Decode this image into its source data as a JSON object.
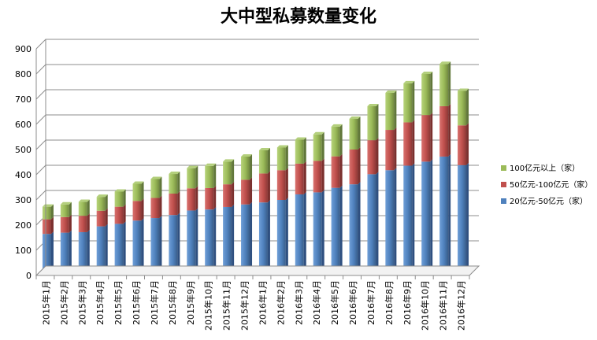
{
  "chart_data": {
    "type": "bar",
    "stacked": true,
    "title": "大中型私募数量变化",
    "xlabel": "",
    "ylabel": "",
    "ylim": [
      0,
      900
    ],
    "yticks": [
      0,
      100,
      200,
      300,
      400,
      500,
      600,
      700,
      800,
      900
    ],
    "grid": true,
    "legend_position": "right",
    "categories": [
      "2015年1月",
      "2015年2月",
      "2015年3月",
      "2015年4月",
      "2015年5月",
      "2015年6月",
      "2015年7月",
      "2015年8月",
      "2015年9月",
      "2015年10月",
      "2015年11月",
      "2015年12月",
      "2016年1月",
      "2016年2月",
      "2016年3月",
      "2016年4月",
      "2016年5月",
      "2016年6月",
      "2016年7月",
      "2016年8月",
      "2016年9月",
      "2016年10月",
      "2016年11月",
      "2016年12月"
    ],
    "series": [
      {
        "name": "20亿元-50亿元（家）",
        "color": "#4f81bd",
        "values": [
          165,
          170,
          172,
          195,
          205,
          218,
          228,
          240,
          258,
          262,
          272,
          282,
          290,
          300,
          322,
          330,
          348,
          362,
          402,
          418,
          436,
          452,
          472,
          438
        ]
      },
      {
        "name": "50亿元-100亿元（家）",
        "color": "#c0504d",
        "values": [
          58,
          62,
          65,
          62,
          68,
          78,
          80,
          85,
          88,
          85,
          90,
          98,
          115,
          118,
          122,
          125,
          125,
          138,
          135,
          160,
          172,
          185,
          200,
          158
        ]
      },
      {
        "name": "100亿元以上（家）",
        "color": "#9bbb59",
        "values": [
          50,
          50,
          55,
          55,
          60,
          68,
          75,
          78,
          80,
          88,
          90,
          92,
          92,
          90,
          95,
          105,
          118,
          122,
          135,
          147,
          155,
          163,
          168,
          137
        ]
      }
    ]
  }
}
